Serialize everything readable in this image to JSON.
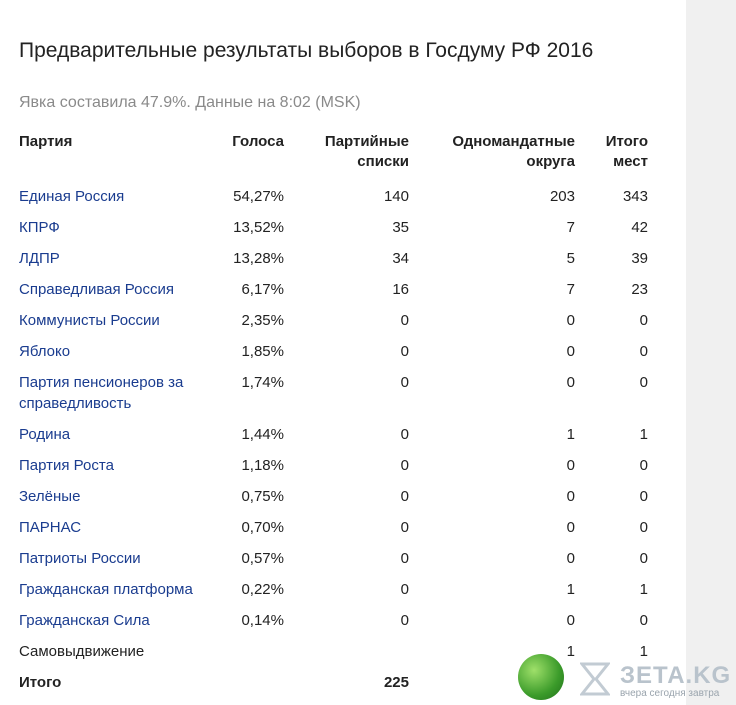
{
  "title": "Предварительные результаты выборов в Госдуму РФ 2016",
  "subtitle": "Явка составила 47.9%. Данные на 8:02 (MSK)",
  "table": {
    "headers": [
      "Партия",
      "Голоса",
      "Партийные списки",
      "Одномандатные округа",
      "Итого мест"
    ],
    "rows": [
      {
        "party": "Единая Россия",
        "votes": "54,27%",
        "lists": "140",
        "districts": "203",
        "total": "343",
        "link": true
      },
      {
        "party": "КПРФ",
        "votes": "13,52%",
        "lists": "35",
        "districts": "7",
        "total": "42",
        "link": true
      },
      {
        "party": "ЛДПР",
        "votes": "13,28%",
        "lists": "34",
        "districts": "5",
        "total": "39",
        "link": true
      },
      {
        "party": "Справедливая Россия",
        "votes": "6,17%",
        "lists": "16",
        "districts": "7",
        "total": "23",
        "link": true
      },
      {
        "party": "Коммунисты России",
        "votes": "2,35%",
        "lists": "0",
        "districts": "0",
        "total": "0",
        "link": true
      },
      {
        "party": "Яблоко",
        "votes": "1,85%",
        "lists": "0",
        "districts": "0",
        "total": "0",
        "link": true
      },
      {
        "party": "Партия пенсионеров за справедливость",
        "votes": "1,74%",
        "lists": "0",
        "districts": "0",
        "total": "0",
        "link": true
      },
      {
        "party": "Родина",
        "votes": "1,44%",
        "lists": "0",
        "districts": "1",
        "total": "1",
        "link": true
      },
      {
        "party": "Партия Роста",
        "votes": "1,18%",
        "lists": "0",
        "districts": "0",
        "total": "0",
        "link": true
      },
      {
        "party": "Зелёные",
        "votes": "0,75%",
        "lists": "0",
        "districts": "0",
        "total": "0",
        "link": true
      },
      {
        "party": "ПАРНАС",
        "votes": "0,70%",
        "lists": "0",
        "districts": "0",
        "total": "0",
        "link": true
      },
      {
        "party": "Патриоты России",
        "votes": "0,57%",
        "lists": "0",
        "districts": "0",
        "total": "0",
        "link": true
      },
      {
        "party": "Гражданская платформа",
        "votes": "0,22%",
        "lists": "0",
        "districts": "1",
        "total": "1",
        "link": true
      },
      {
        "party": "Гражданская Сила",
        "votes": "0,14%",
        "lists": "0",
        "districts": "0",
        "total": "0",
        "link": true
      },
      {
        "party": "Самовыдвижение",
        "votes": "",
        "lists": "",
        "districts": "1",
        "total": "1",
        "link": false
      }
    ],
    "total_row": {
      "label": "Итого",
      "votes": "",
      "lists": "225",
      "districts": "",
      "total": ""
    }
  },
  "watermark": {
    "text": "ЗЕТА.KG",
    "tagline": "вчера сегодня завтра"
  },
  "colors": {
    "link": "#1a3c8f",
    "subtitle": "#8a8a8a",
    "background": "#f0f0f0"
  }
}
